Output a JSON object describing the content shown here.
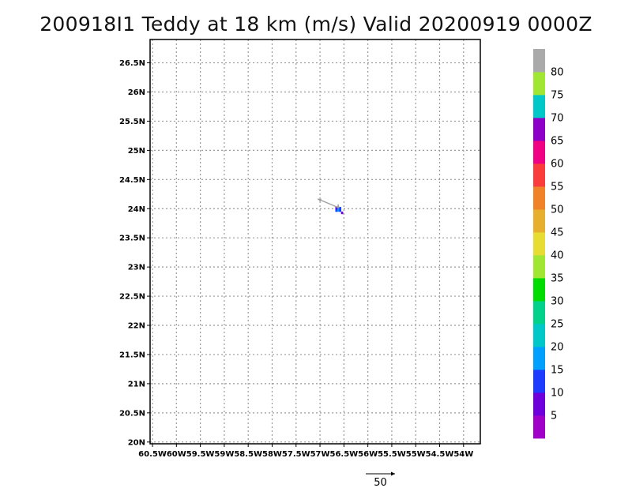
{
  "chart_data": {
    "type": "heatmap",
    "title": "200918I1 Teddy at 18 km (m/s) Valid 20200919 0000Z",
    "x_ticks": [
      "60.5W",
      "60W",
      "59.5W",
      "59W",
      "58.5W",
      "58W",
      "57.5W",
      "57W",
      "56.5W",
      "56W",
      "55.5W",
      "55W",
      "54.5W",
      "54W"
    ],
    "y_ticks": [
      "20N",
      "20.5N",
      "21N",
      "21.5N",
      "22N",
      "22.5N",
      "23N",
      "23.5N",
      "24N",
      "24.5N",
      "25N",
      "25.5N",
      "26N",
      "26.5N"
    ],
    "xlim": [
      -60.55,
      -53.65
    ],
    "ylim": [
      19.97,
      26.9
    ],
    "grid": true,
    "colorbar": {
      "labels": [
        "5",
        "10",
        "15",
        "20",
        "25",
        "30",
        "35",
        "40",
        "45",
        "50",
        "55",
        "60",
        "65",
        "70",
        "75",
        "80"
      ],
      "colors": [
        "#a000c8",
        "#6e00dc",
        "#1e3cff",
        "#00a0ff",
        "#00c8c8",
        "#00d28c",
        "#00dc00",
        "#a0e632",
        "#e6dc32",
        "#e6af2d",
        "#f08228",
        "#fa3c3c",
        "#f00082",
        "#8c00c8",
        "#00c8c8",
        "#a0e632",
        "#aaaaaa"
      ]
    },
    "cells": [
      {
        "lon": -56.66,
        "lat": 23.97,
        "value": 12
      },
      {
        "lon": -56.62,
        "lat": 23.97,
        "value": 16
      },
      {
        "lon": -56.58,
        "lat": 23.97,
        "value": 12
      },
      {
        "lon": -56.62,
        "lat": 24.01,
        "value": 18
      },
      {
        "lon": -56.58,
        "lat": 24.01,
        "value": 14
      },
      {
        "lon": -56.66,
        "lat": 24.01,
        "value": 8
      },
      {
        "lon": -56.54,
        "lat": 23.93,
        "value": 6
      }
    ],
    "vectors": [
      {
        "lon": -56.62,
        "lat": 24.02,
        "u": -1.0,
        "v": 0.42
      },
      {
        "lon": -56.62,
        "lat": 24.04,
        "u": 0.0,
        "v": 0.1
      }
    ],
    "reference_vector": {
      "label": "50"
    }
  }
}
